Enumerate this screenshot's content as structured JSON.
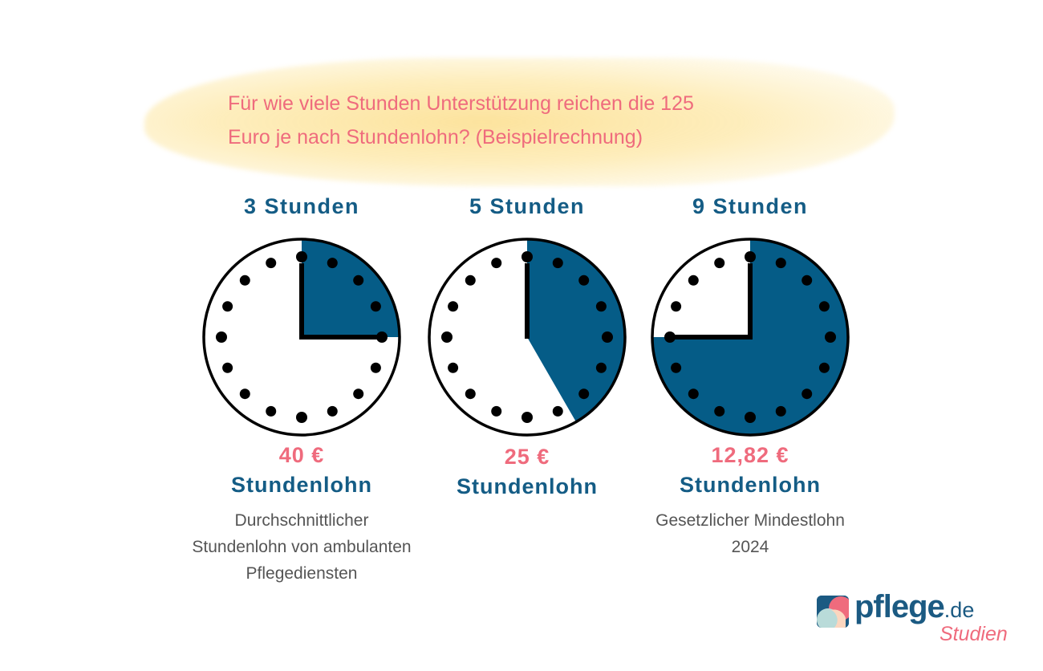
{
  "header": {
    "title_line1": "Für wie viele Stunden Unterstützung reichen die 125",
    "title_line2": "Euro je nach Stundenlohn? (Beispielrechnung)"
  },
  "colors": {
    "accent_pink": "#ef6b7d",
    "primary_blue": "#145c85",
    "fill_blue": "#055c87",
    "highlight_yellow": "#fde49a"
  },
  "columns": [
    {
      "hours_label": "3 Stunden",
      "wage": "40 €",
      "wage_label": "Stundenlohn",
      "note_lines": [
        "Durchschnittlicher",
        "Stundenlohn von ambulanten",
        "Pflegediensten"
      ]
    },
    {
      "hours_label": "5 Stunden",
      "wage": "25 €",
      "wage_label": "Stundenlohn",
      "note_lines": []
    },
    {
      "hours_label": "9 Stunden",
      "wage": "12,82 €",
      "wage_label": "Stundenlohn",
      "note_lines": [
        "Gesetzlicher Mindestlohn",
        "2024"
      ]
    }
  ],
  "logo": {
    "wordmark": "pflege",
    "tld": ".de",
    "subtitle": "Studien"
  },
  "chart_data": {
    "type": "pie",
    "title": "Für wie viele Stunden Unterstützung reichen die 125 Euro je nach Stundenlohn? (Beispielrechnung)",
    "budget_eur": 125,
    "clock_hours_total": 12,
    "categories": [
      "40 € Stundenlohn",
      "25 € Stundenlohn",
      "12,82 € Stundenlohn"
    ],
    "series": [
      {
        "name": "Stunden Unterstützung",
        "values": [
          3,
          5,
          9
        ]
      }
    ],
    "hourly_wage_eur": [
      40,
      25,
      12.82
    ],
    "annotations": [
      "Durchschnittlicher Stundenlohn von ambulanten Pflegediensten",
      "",
      "Gesetzlicher Mindestlohn 2024"
    ],
    "legend": "none"
  }
}
